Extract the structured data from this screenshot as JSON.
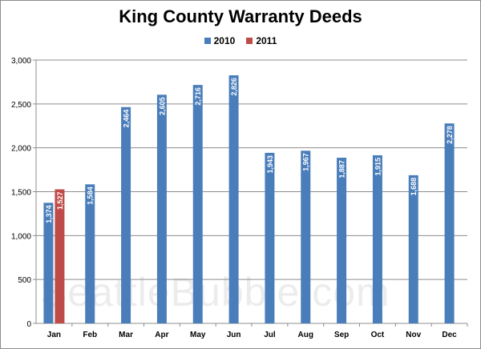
{
  "chart_data": {
    "type": "bar",
    "title": "King County Warranty Deeds",
    "xlabel": "",
    "ylabel": "",
    "categories": [
      "Jan",
      "Feb",
      "Mar",
      "Apr",
      "May",
      "Jun",
      "Jul",
      "Aug",
      "Sep",
      "Oct",
      "Nov",
      "Dec"
    ],
    "series": [
      {
        "name": "2010",
        "color": "#4a7ebb",
        "values": [
          1374,
          1584,
          2464,
          2605,
          2716,
          2826,
          1943,
          1967,
          1887,
          1915,
          1688,
          2278
        ],
        "labels": [
          "1,374",
          "1,584",
          "2,464",
          "2,605",
          "2,716",
          "2,826",
          "1,943",
          "1,967",
          "1,887",
          "1,915",
          "1,688",
          "2,278"
        ]
      },
      {
        "name": "2011",
        "color": "#be4b48",
        "values": [
          1527,
          null,
          null,
          null,
          null,
          null,
          null,
          null,
          null,
          null,
          null,
          null
        ],
        "labels": [
          "1,527",
          "",
          "",
          "",
          "",
          "",
          "",
          "",
          "",
          "",
          "",
          ""
        ]
      }
    ],
    "ylim": [
      0,
      3000
    ],
    "yticks": [
      0,
      500,
      1000,
      1500,
      2000,
      2500,
      3000
    ],
    "ytick_labels": [
      "0",
      "500",
      "1,000",
      "1,500",
      "2,000",
      "2,500",
      "3,000"
    ],
    "grid": true,
    "legend_position": "top"
  },
  "watermark": "SeattleBubble.com"
}
